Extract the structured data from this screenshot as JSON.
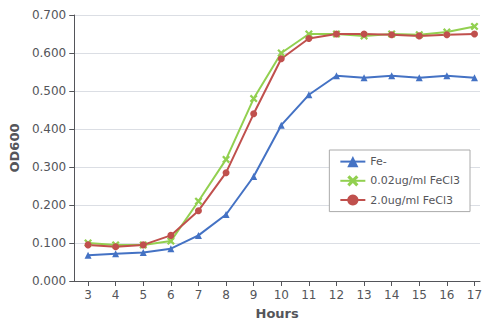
{
  "chart_data": {
    "type": "line",
    "xlabel": "Hours",
    "ylabel": "OD600",
    "x": [
      3,
      4,
      5,
      6,
      7,
      8,
      9,
      10,
      11,
      12,
      13,
      14,
      15,
      16,
      17
    ],
    "series": [
      {
        "name": "Fe-",
        "color": "#4472C4",
        "marker": "triangle",
        "values": [
          0.068,
          0.072,
          0.075,
          0.085,
          0.12,
          0.175,
          0.275,
          0.41,
          0.49,
          0.54,
          0.535,
          0.54,
          0.535,
          0.54,
          0.535
        ]
      },
      {
        "name": "0.02ug/ml FeCl3",
        "color": "#92D050",
        "marker": "x",
        "values": [
          0.1,
          0.095,
          0.095,
          0.105,
          0.21,
          0.32,
          0.48,
          0.6,
          0.65,
          0.65,
          0.645,
          0.65,
          0.648,
          0.655,
          0.67
        ]
      },
      {
        "name": "2.0ug/ml FeCl3",
        "color": "#C0504D",
        "marker": "circle",
        "values": [
          0.095,
          0.09,
          0.095,
          0.12,
          0.185,
          0.285,
          0.44,
          0.585,
          0.638,
          0.65,
          0.65,
          0.648,
          0.645,
          0.648,
          0.65
        ]
      }
    ],
    "xlim": [
      2.5,
      17.2
    ],
    "xticks": [
      3,
      4,
      5,
      6,
      7,
      8,
      9,
      10,
      11,
      12,
      13,
      14,
      15,
      16,
      17
    ],
    "ylim": [
      0.0,
      0.7
    ],
    "yticks": [
      {
        "value": 0.0,
        "label": "0.000"
      },
      {
        "value": 0.1,
        "label": "0.100"
      },
      {
        "value": 0.2,
        "label": "0.200"
      },
      {
        "value": 0.3,
        "label": "0.300"
      },
      {
        "value": 0.4,
        "label": "0.400"
      },
      {
        "value": 0.5,
        "label": "0.500"
      },
      {
        "value": 0.6,
        "label": "0.600"
      },
      {
        "value": 0.7,
        "label": "0.700"
      }
    ],
    "grid": true,
    "legend": "right"
  }
}
